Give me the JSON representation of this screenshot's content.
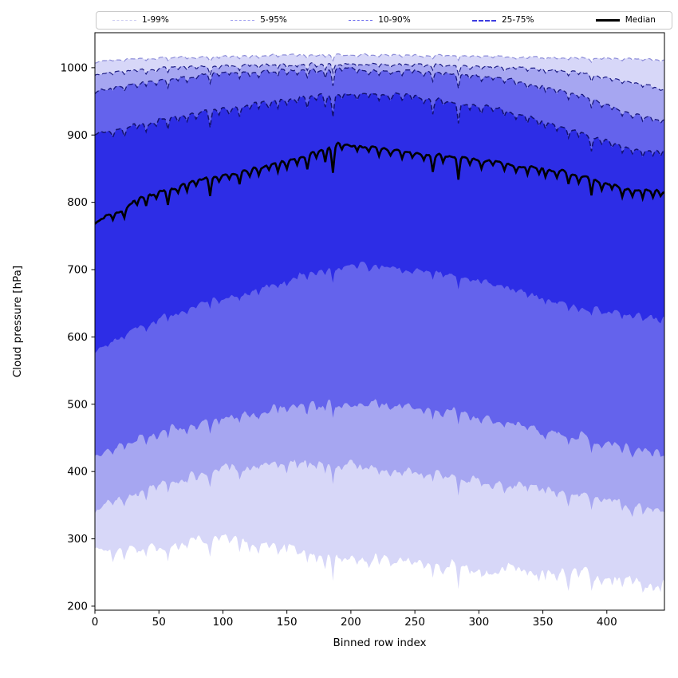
{
  "figure": {
    "background": "#ffffff"
  },
  "legend": {
    "items": [
      {
        "label": "1-99%",
        "color": "#cdcdf2",
        "style": "dashed",
        "weight": 1.5
      },
      {
        "label": "5-95%",
        "color": "#9f9ff0",
        "style": "dashed",
        "weight": 1.5
      },
      {
        "label": "10-90%",
        "color": "#6b6bee",
        "style": "dashed",
        "weight": 1.8
      },
      {
        "label": "25-75%",
        "color": "#3d3de0",
        "style": "dashed",
        "weight": 2.4
      },
      {
        "label": "Median",
        "color": "#000000",
        "style": "solid",
        "weight": 3.2
      }
    ]
  },
  "chart_data": {
    "type": "area",
    "title": "",
    "xlabel": "Binned row index",
    "ylabel": "Cloud pressure [hPa]",
    "xlim": [
      0,
      445
    ],
    "ylim": [
      194,
      1052
    ],
    "xticks": [
      0,
      50,
      100,
      150,
      200,
      250,
      300,
      350,
      400
    ],
    "yticks": [
      200,
      300,
      400,
      500,
      600,
      700,
      800,
      900,
      1000
    ],
    "grid": false,
    "legend_position": "top-outside",
    "bands": [
      {
        "name": "1-99%",
        "upper": "p99",
        "lower": "p1",
        "fill": "#d7d7f8"
      },
      {
        "name": "5-95%",
        "upper": "p95",
        "lower": "p5",
        "fill": "#a6a6f1"
      },
      {
        "name": "10-90%",
        "upper": "p90",
        "lower": "p10",
        "fill": "#6463ec"
      },
      {
        "name": "25-75%",
        "upper": "p75",
        "lower": "p25",
        "fill": "#2d2de6"
      }
    ],
    "edge_lines": [
      {
        "series": "p99",
        "color": "#8c8cd8",
        "width": 1.2
      },
      {
        "series": "p95",
        "color": "#1c1c84",
        "width": 1.2
      },
      {
        "series": "p90",
        "color": "#17177c",
        "width": 1.3
      },
      {
        "series": "p75",
        "color": "#121270",
        "width": 1.5
      }
    ],
    "median_line": {
      "series": "median",
      "color": "#000000",
      "width": 2.6
    },
    "series": {
      "x": [
        0,
        10,
        20,
        30,
        40,
        50,
        60,
        70,
        80,
        90,
        100,
        110,
        120,
        130,
        140,
        150,
        160,
        170,
        180,
        190,
        200,
        210,
        220,
        230,
        240,
        250,
        260,
        270,
        280,
        290,
        300,
        310,
        320,
        330,
        340,
        350,
        360,
        370,
        380,
        390,
        400,
        410,
        420,
        430,
        440,
        445
      ],
      "p99": [
        1008,
        1011,
        1012,
        1013,
        1014,
        1015,
        1015,
        1016,
        1016,
        1017,
        1017,
        1018,
        1018,
        1018,
        1019,
        1019,
        1019,
        1020,
        1020,
        1020,
        1019,
        1019,
        1019,
        1019,
        1019,
        1018,
        1018,
        1018,
        1018,
        1018,
        1017,
        1017,
        1017,
        1016,
        1016,
        1016,
        1015,
        1015,
        1015,
        1014,
        1014,
        1013,
        1013,
        1013,
        1012,
        1012
      ],
      "p95": [
        988,
        992,
        994,
        996,
        997,
        999,
        1000,
        1001,
        1002,
        1002,
        1003,
        1003,
        1004,
        1004,
        1005,
        1005,
        1005,
        1006,
        1006,
        1006,
        1006,
        1006,
        1005,
        1005,
        1005,
        1004,
        1004,
        1004,
        1003,
        1003,
        1002,
        1002,
        1001,
        1000,
        999,
        998,
        997,
        995,
        993,
        990,
        986,
        982,
        978,
        974,
        971,
        970
      ],
      "p90": [
        963,
        969,
        973,
        977,
        980,
        983,
        985,
        987,
        989,
        991,
        992,
        993,
        994,
        995,
        996,
        996,
        997,
        997,
        998,
        998,
        998,
        997,
        997,
        996,
        995,
        995,
        994,
        993,
        992,
        990,
        988,
        986,
        984,
        981,
        977,
        973,
        968,
        963,
        958,
        952,
        945,
        938,
        932,
        927,
        923,
        921
      ],
      "p75": [
        898,
        905,
        910,
        914,
        918,
        922,
        926,
        929,
        932,
        936,
        939,
        942,
        945,
        948,
        950,
        953,
        955,
        957,
        959,
        961,
        962,
        962,
        961,
        960,
        959,
        957,
        955,
        953,
        950,
        947,
        944,
        940,
        936,
        931,
        926,
        921,
        915,
        909,
        903,
        897,
        891,
        886,
        882,
        879,
        877,
        876
      ],
      "median": [
        770,
        780,
        786,
        800,
        810,
        815,
        820,
        826,
        831,
        835,
        840,
        844,
        848,
        853,
        857,
        861,
        868,
        874,
        881,
        886,
        885,
        883,
        881,
        878,
        876,
        873,
        871,
        870,
        868,
        866,
        863,
        861,
        858,
        855,
        852,
        850,
        848,
        844,
        839,
        834,
        828,
        824,
        820,
        817,
        818,
        816
      ],
      "p25": [
        580,
        590,
        600,
        610,
        620,
        628,
        635,
        641,
        647,
        653,
        658,
        663,
        668,
        673,
        678,
        684,
        691,
        697,
        702,
        706,
        708,
        707,
        706,
        704,
        702,
        700,
        698,
        695,
        692,
        689,
        685,
        681,
        677,
        672,
        666,
        660,
        654,
        649,
        647,
        643,
        639,
        636,
        633,
        630,
        628,
        627
      ],
      "p10": [
        420,
        430,
        438,
        446,
        453,
        459,
        464,
        469,
        473,
        477,
        481,
        484,
        487,
        490,
        493,
        495,
        497,
        499,
        501,
        502,
        502,
        502,
        501,
        500,
        498,
        496,
        494,
        491,
        488,
        485,
        482,
        478,
        474,
        470,
        465,
        461,
        456,
        453,
        455,
        448,
        443,
        438,
        434,
        431,
        429,
        428
      ],
      "p5": [
        342,
        352,
        360,
        368,
        375,
        381,
        387,
        392,
        396,
        400,
        404,
        407,
        409,
        411,
        412,
        413,
        414,
        414,
        413,
        412,
        411,
        409,
        407,
        405,
        403,
        400,
        398,
        395,
        393,
        390,
        388,
        385,
        382,
        379,
        376,
        372,
        369,
        367,
        370,
        362,
        357,
        352,
        348,
        344,
        342,
        341
      ],
      "p1": [
        280,
        283,
        285,
        287,
        289,
        291,
        293,
        296,
        299,
        302,
        300,
        297,
        294,
        291,
        288,
        286,
        284,
        282,
        280,
        278,
        276,
        274,
        272,
        270,
        268,
        266,
        264,
        262,
        261,
        259,
        258,
        256,
        255,
        253,
        252,
        250,
        249,
        250,
        255,
        248,
        244,
        240,
        236,
        233,
        231,
        230
      ]
    },
    "noise_amp": {
      "p99": 1.0,
      "p95": 1.4,
      "p90": 1.8,
      "p75": 2.0,
      "median": 1.6,
      "p25": 3.5,
      "p10": 4.5,
      "p5": 5.0,
      "p1": 6.5
    },
    "spike_mult": {
      "p99": 0.22,
      "p95": 0.4,
      "p90": 0.6,
      "p75": 0.85,
      "median": 1.0,
      "p25": 0.55,
      "p10": 0.7,
      "p5": 0.8,
      "p1": 1.0
    },
    "spikes": [
      [
        14,
        10
      ],
      [
        23,
        13
      ],
      [
        33,
        8
      ],
      [
        40,
        15
      ],
      [
        48,
        10
      ],
      [
        57,
        22
      ],
      [
        65,
        9
      ],
      [
        72,
        12
      ],
      [
        79,
        8
      ],
      [
        90,
        28
      ],
      [
        97,
        10
      ],
      [
        105,
        8
      ],
      [
        113,
        18
      ],
      [
        121,
        9
      ],
      [
        128,
        12
      ],
      [
        136,
        8
      ],
      [
        143,
        14
      ],
      [
        150,
        10
      ],
      [
        158,
        9
      ],
      [
        166,
        20
      ],
      [
        173,
        10
      ],
      [
        180,
        22
      ],
      [
        186,
        38
      ],
      [
        193,
        8
      ],
      [
        205,
        10
      ],
      [
        214,
        8
      ],
      [
        222,
        12
      ],
      [
        231,
        8
      ],
      [
        240,
        10
      ],
      [
        248,
        8
      ],
      [
        257,
        9
      ],
      [
        264,
        24
      ],
      [
        272,
        10
      ],
      [
        284,
        34
      ],
      [
        293,
        9
      ],
      [
        302,
        12
      ],
      [
        311,
        8
      ],
      [
        320,
        10
      ],
      [
        329,
        9
      ],
      [
        338,
        12
      ],
      [
        347,
        9
      ],
      [
        352,
        12
      ],
      [
        361,
        9
      ],
      [
        370,
        16
      ],
      [
        378,
        10
      ],
      [
        388,
        26
      ],
      [
        396,
        10
      ],
      [
        404,
        9
      ],
      [
        412,
        14
      ],
      [
        420,
        9
      ],
      [
        428,
        12
      ],
      [
        436,
        10
      ],
      [
        442,
        8
      ]
    ]
  }
}
